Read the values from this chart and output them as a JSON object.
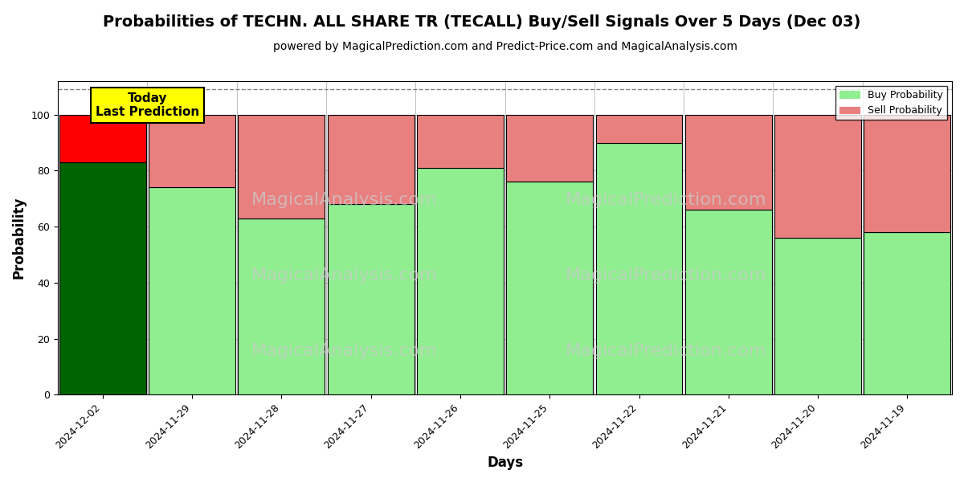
{
  "title": "Probabilities of TECHN. ALL SHARE TR (TECALL) Buy/Sell Signals Over 5 Days (Dec 03)",
  "subtitle": "powered by MagicalPrediction.com and Predict-Price.com and MagicalAnalysis.com",
  "xlabel": "Days",
  "ylabel": "Probability",
  "categories": [
    "2024-12-02",
    "2024-11-29",
    "2024-11-28",
    "2024-11-27",
    "2024-11-26",
    "2024-11-25",
    "2024-11-22",
    "2024-11-21",
    "2024-11-20",
    "2024-11-19"
  ],
  "buy_values": [
    83,
    74,
    63,
    68,
    81,
    76,
    90,
    66,
    56,
    58
  ],
  "sell_values": [
    17,
    26,
    37,
    32,
    19,
    24,
    10,
    34,
    44,
    42
  ],
  "buy_color_today": "#006400",
  "sell_color_today": "#ff0000",
  "buy_color_normal": "#90ee90",
  "sell_color_normal": "#e88080",
  "bar_edge_color": "#000000",
  "bar_width": 0.97,
  "ylim": [
    0,
    112
  ],
  "yticks": [
    0,
    20,
    40,
    60,
    80,
    100
  ],
  "dashed_line_y": 109,
  "legend_buy_label": "Buy Probability",
  "legend_sell_label": "Sell Probability",
  "annotation_text": "Today\nLast Prediction",
  "annotation_box_color": "#ffff00",
  "annotation_fontsize": 11,
  "watermark_color": "#cccccc",
  "title_fontsize": 14,
  "subtitle_fontsize": 10,
  "axis_label_fontsize": 12,
  "tick_fontsize": 9,
  "grid_color": "#aaaaaa",
  "background_color": "#ffffff",
  "fig_width": 12,
  "fig_height": 6
}
